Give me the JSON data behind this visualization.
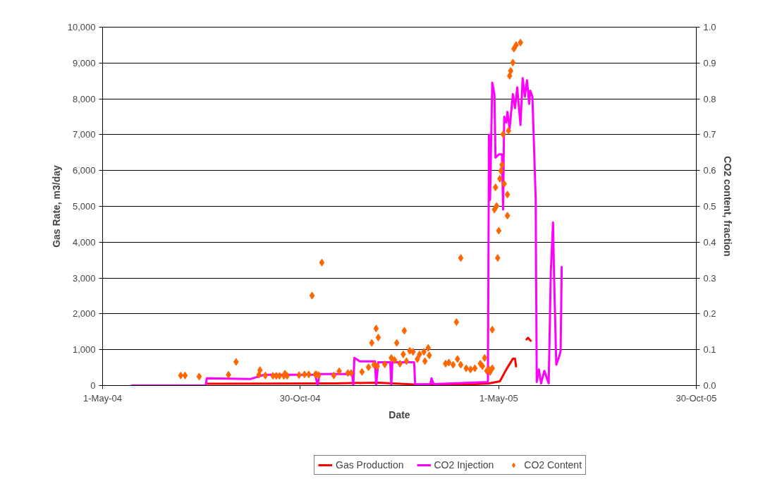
{
  "chart_data": {
    "type": "line",
    "xlabel": "Date",
    "ylabel": "Gas Rate, m3/day",
    "y2label": "CO2 content, fraction",
    "xlim": [
      "2004-05-01",
      "2005-10-30"
    ],
    "xticks": [
      {
        "value": "2004-05-01",
        "label": "1-May-04"
      },
      {
        "value": "2004-10-30",
        "label": "30-Oct-04"
      },
      {
        "value": "2005-05-01",
        "label": "1-May-05"
      },
      {
        "value": "2005-10-30",
        "label": "30-Oct-05"
      }
    ],
    "ylim": [
      0,
      10000
    ],
    "yticks": [
      0,
      {
        "value": 1000,
        "label": "1,000"
      },
      {
        "value": 2000,
        "label": "2,000"
      },
      {
        "value": 3000,
        "label": "3,000"
      },
      {
        "value": 4000,
        "label": "4,000"
      },
      {
        "value": 5000,
        "label": "5,000"
      },
      {
        "value": 6000,
        "label": "6,000"
      },
      {
        "value": 7000,
        "label": "7,000"
      },
      {
        "value": 8000,
        "label": "8,000"
      },
      {
        "value": 9000,
        "label": "9,000"
      },
      {
        "value": 10000,
        "label": "10,000"
      }
    ],
    "y2lim": [
      0,
      1
    ],
    "y2ticks": [
      {
        "value": 0,
        "label": "0.0"
      },
      {
        "value": 0.1,
        "label": "0.1"
      },
      {
        "value": 0.2,
        "label": "0.2"
      },
      {
        "value": 0.3,
        "label": "0.3"
      },
      {
        "value": 0.4,
        "label": "0.4"
      },
      {
        "value": 0.5,
        "label": "0.5"
      },
      {
        "value": 0.6,
        "label": "0.6"
      },
      {
        "value": 0.7,
        "label": "0.7"
      },
      {
        "value": 0.8,
        "label": "0.8"
      },
      {
        "value": 0.9,
        "label": "0.9"
      },
      {
        "value": 1,
        "label": "1.0"
      }
    ],
    "grid": "y",
    "legend": "bottom",
    "series": [
      {
        "name": "Gas Production",
        "color": "#ff0000",
        "x": [
          "2004-08-05",
          "2004-12-01",
          "2005-01-10",
          "2005-02-12",
          "2005-04-10",
          "2005-04-22",
          "2005-05-02",
          "2005-05-08",
          "2005-05-14",
          "2005-05-16",
          "2005-05-17",
          "2005-05-21",
          "2005-05-26",
          "2005-05-28",
          "2005-05-31"
        ],
        "values": [
          50,
          60,
          80,
          30,
          40,
          60,
          120,
          450,
          750,
          750,
          510,
          null,
          1270,
          1330,
          1230
        ]
      },
      {
        "name": "CO2 Injection",
        "color": "#ff00ff",
        "x": [
          "2004-05-27",
          "2004-08-04",
          "2004-08-05",
          "2004-09-14",
          "2004-09-27",
          "2004-11-13",
          "2004-11-15",
          "2004-11-17",
          "2004-12-17",
          "2004-12-18",
          "2004-12-19",
          "2004-12-24",
          "2005-01-07",
          "2005-01-08",
          "2005-01-10",
          "2005-01-21",
          "2005-01-22",
          "2005-01-23",
          "2005-02-12",
          "2005-02-13",
          "2005-02-27",
          "2005-02-28",
          "2005-03-02",
          "2005-04-21",
          "2005-04-22",
          "2005-04-23",
          "2005-04-25",
          "2005-04-27",
          "2005-04-28",
          "2005-05-01",
          "2005-05-04",
          "2005-05-05",
          "2005-05-06",
          "2005-05-08",
          "2005-05-09",
          "2005-05-11",
          "2005-05-14",
          "2005-05-16",
          "2005-05-18",
          "2005-05-21",
          "2005-05-23",
          "2005-05-25",
          "2005-05-27",
          "2005-05-29",
          "2005-05-30",
          "2005-06-01",
          "2005-06-04",
          "2005-06-05",
          "2005-06-07",
          "2005-06-09",
          "2005-06-12",
          "2005-06-16",
          "2005-06-18",
          "2005-06-20",
          "2005-06-21",
          "2005-06-23",
          "2005-06-26",
          "2005-06-27",
          "2005-06-28"
        ],
        "values": [
          0,
          0,
          200,
          180,
          300,
          300,
          0,
          320,
          320,
          0,
          775,
          675,
          675,
          0,
          650,
          650,
          0,
          650,
          650,
          30,
          40,
          200,
          40,
          100,
          7000,
          5180,
          8450,
          8130,
          6360,
          6450,
          6450,
          4910,
          7500,
          7340,
          7640,
          7170,
          8130,
          7740,
          8320,
          7270,
          8580,
          8060,
          8520,
          7860,
          8230,
          8060,
          5240,
          100,
          450,
          60,
          410,
          60,
          3200,
          4550,
          3010,
          580,
          840,
          970,
          3330
        ]
      },
      {
        "name": "CO2 Content",
        "type": "scatter",
        "axis": "y2",
        "marker": "diamond",
        "color": "#ff6600",
        "x": [
          "2004-07-12",
          "2004-07-16",
          "2004-07-29",
          "2004-08-25",
          "2004-09-01",
          "2004-09-22",
          "2004-09-23",
          "2004-09-28",
          "2004-10-05",
          "2004-10-08",
          "2004-10-11",
          "2004-10-15",
          "2004-10-18",
          "2004-10-16",
          "2004-10-29",
          "2004-11-03",
          "2004-11-07",
          "2004-11-10",
          "2004-11-13",
          "2004-11-14",
          "2004-11-16",
          "2004-11-19",
          "2004-11-30",
          "2004-12-05",
          "2004-12-13",
          "2004-12-16",
          "2004-12-26",
          "2005-01-01",
          "2005-01-04",
          "2005-01-06",
          "2005-01-08",
          "2005-01-09",
          "2005-01-10",
          "2005-01-16",
          "2005-01-22",
          "2005-01-25",
          "2005-01-27",
          "2005-01-30",
          "2005-02-02",
          "2005-02-03",
          "2005-02-05",
          "2005-02-08",
          "2005-02-11",
          "2005-02-15",
          "2005-02-17",
          "2005-02-21",
          "2005-02-22",
          "2005-02-25",
          "2005-02-26",
          "2005-03-13",
          "2005-03-16",
          "2005-03-20",
          "2005-03-23",
          "2005-03-24",
          "2005-03-27",
          "2005-03-27",
          "2005-04-01",
          "2005-04-05",
          "2005-04-09",
          "2005-04-14",
          "2005-04-16",
          "2005-04-18",
          "2005-04-20",
          "2005-04-22",
          "2005-04-23",
          "2005-04-25",
          "2005-04-25",
          "2005-04-27",
          "2005-04-28",
          "2005-04-29",
          "2005-04-30",
          "2005-05-01",
          "2005-05-02",
          "2005-05-03",
          "2005-05-04",
          "2005-05-05",
          "2005-05-06",
          "2005-05-09",
          "2005-05-09",
          "2005-05-10",
          "2005-05-11",
          "2005-05-12",
          "2005-05-14",
          "2005-05-15",
          "2005-05-17",
          "2005-05-21"
        ],
        "values": [
          0.028,
          0.028,
          0.025,
          0.03,
          0.066,
          0.03,
          0.043,
          0.028,
          0.027,
          0.027,
          0.027,
          0.027,
          0.027,
          0.033,
          0.029,
          0.031,
          0.031,
          0.251,
          0.031,
          0.031,
          0.029,
          0.343,
          0.028,
          0.04,
          0.035,
          0.035,
          0.038,
          0.051,
          0.119,
          0.058,
          0.159,
          0.054,
          0.134,
          0.059,
          0.077,
          0.071,
          0.119,
          0.061,
          0.087,
          0.153,
          0.068,
          0.097,
          0.094,
          0.074,
          0.087,
          0.094,
          0.068,
          0.105,
          0.084,
          0.061,
          0.064,
          0.058,
          0.177,
          0.074,
          0.356,
          0.058,
          0.048,
          0.045,
          0.048,
          0.061,
          0.054,
          0.077,
          0.041,
          0.045,
          0.038,
          0.048,
          0.156,
          0.491,
          0.553,
          0.501,
          0.356,
          0.432,
          0.577,
          0.599,
          0.616,
          0.701,
          0.563,
          0.533,
          0.474,
          0.711,
          0.864,
          0.878,
          0.901,
          0.94,
          0.95,
          0.957
        ]
      }
    ]
  }
}
